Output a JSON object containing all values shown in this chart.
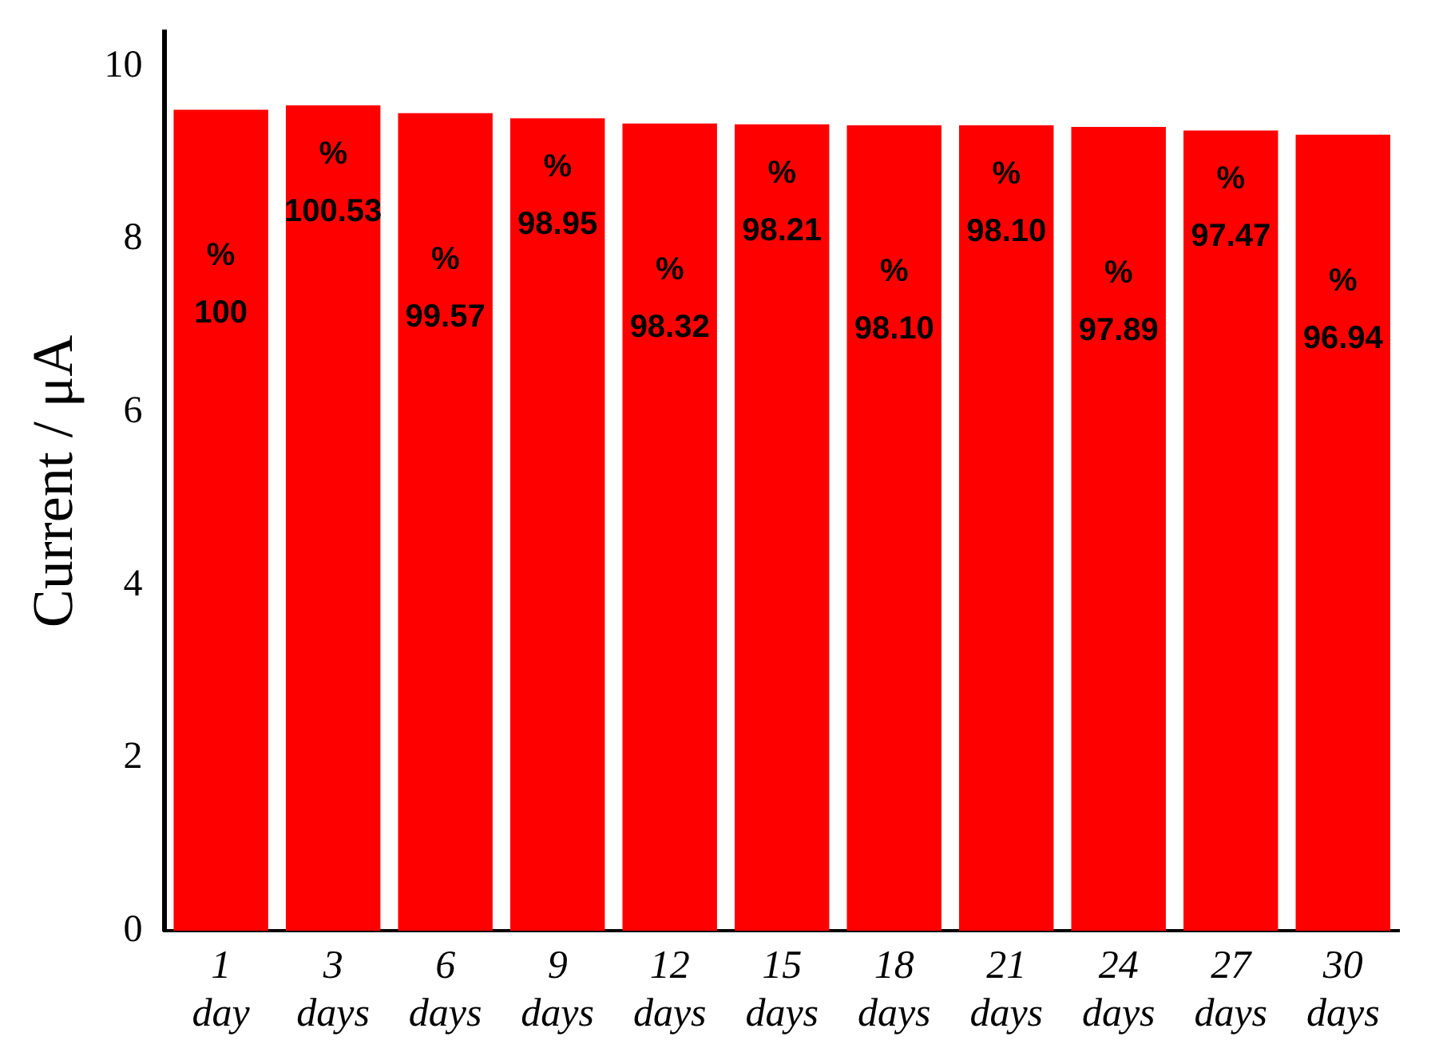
{
  "chart_data": {
    "type": "bar",
    "ylabel": "Current / μA",
    "categories": [
      "1 day",
      "3 days",
      "6 days",
      "9 days",
      "12 days",
      "15 days",
      "18 days",
      "21 days",
      "24 days",
      "27 days",
      "30 days"
    ],
    "values": [
      9.5,
      9.55,
      9.46,
      9.4,
      9.34,
      9.33,
      9.32,
      9.32,
      9.3,
      9.26,
      9.21
    ],
    "annotations": [
      "%\n100",
      "%\n100.53",
      "%\n99.57",
      "%\n98.95",
      "%\n98.32",
      "%\n98.21",
      "%\n98.10",
      "%\n98.10",
      "%\n97.89",
      "%\n97.47",
      "%\n96.94"
    ],
    "color": "#ff0000",
    "ylim": [
      0,
      10.4
    ],
    "yticks": [
      0,
      2,
      4,
      6,
      8,
      10
    ],
    "grid": false,
    "legend": false
  }
}
